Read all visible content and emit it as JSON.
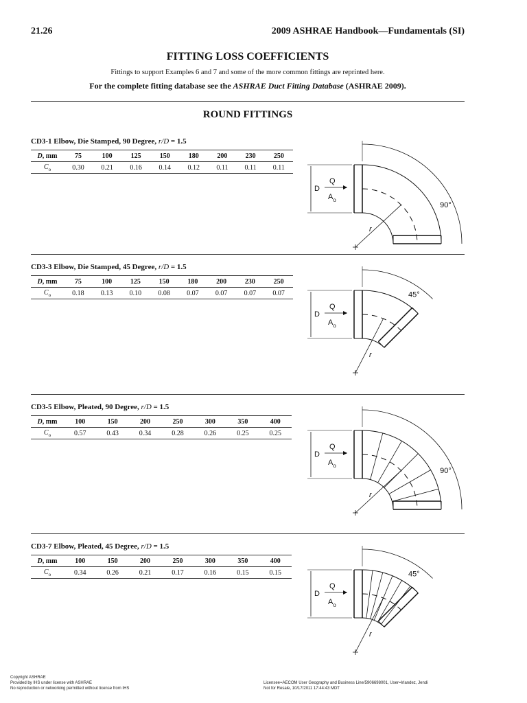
{
  "header": {
    "page_number": "21.26",
    "book": "2009 ASHRAE Handbook—Fundamentals (SI)"
  },
  "title": "FITTING LOSS COEFFICIENTS",
  "intro": "Fittings to support Examples 6 and 7 and some of the more common fittings are reprinted here.",
  "note": {
    "before": "For the complete fitting database see the",
    "italic": "ASHRAE Duct Fitting Database",
    "after": "(ASHRAE 2009)."
  },
  "section": "ROUND FITTINGS",
  "fittings": [
    {
      "title": "CD3-1 Elbow, Die Stamped, 90 Degree,",
      "ratio_var": "r/D",
      "ratio_value": "= 1.5",
      "row_var": "D",
      "row_unit": ", mm",
      "coef_var": "C",
      "coef_sub": "o",
      "diameters": [
        "75",
        "100",
        "125",
        "150",
        "180",
        "200",
        "230",
        "250"
      ],
      "coefficients": [
        "0.30",
        "0.21",
        "0.16",
        "0.14",
        "0.12",
        "0.11",
        "0.11",
        "0.11"
      ],
      "diagram": {
        "angle": "90°",
        "d": "D",
        "q": "Q",
        "a": "A",
        "a_sub": "o",
        "r": "r"
      }
    },
    {
      "title": "CD3-3 Elbow, Die Stamped, 45 Degree,",
      "ratio_var": "r/D",
      "ratio_value": "= 1.5",
      "row_var": "D",
      "row_unit": ", mm",
      "coef_var": "C",
      "coef_sub": "o",
      "diameters": [
        "75",
        "100",
        "125",
        "150",
        "180",
        "200",
        "230",
        "250"
      ],
      "coefficients": [
        "0.18",
        "0.13",
        "0.10",
        "0.08",
        "0.07",
        "0.07",
        "0.07",
        "0.07"
      ],
      "diagram": {
        "angle": "45°",
        "d": "D",
        "q": "Q",
        "a": "A",
        "a_sub": "o",
        "r": "r"
      }
    },
    {
      "title": "CD3-5 Elbow, Pleated, 90 Degree,",
      "ratio_var": "r/D",
      "ratio_value": "= 1.5",
      "row_var": "D",
      "row_unit": ", mm",
      "coef_var": "C",
      "coef_sub": "o",
      "diameters": [
        "100",
        "150",
        "200",
        "250",
        "300",
        "350",
        "400"
      ],
      "coefficients": [
        "0.57",
        "0.43",
        "0.34",
        "0.28",
        "0.26",
        "0.25",
        "0.25"
      ],
      "diagram": {
        "angle": "90°",
        "d": "D",
        "q": "Q",
        "a": "A",
        "a_sub": "o",
        "r": "r"
      }
    },
    {
      "title": "CD3-7 Elbow, Pleated, 45 Degree,",
      "ratio_var": "r/D",
      "ratio_value": "= 1.5",
      "row_var": "D",
      "row_unit": ", mm",
      "coef_var": "C",
      "coef_sub": "o",
      "diameters": [
        "100",
        "150",
        "200",
        "250",
        "300",
        "350",
        "400"
      ],
      "coefficients": [
        "0.34",
        "0.26",
        "0.21",
        "0.17",
        "0.16",
        "0.15",
        "0.15"
      ],
      "diagram": {
        "angle": "45°",
        "d": "D",
        "q": "Q",
        "a": "A",
        "a_sub": "o",
        "r": "r"
      }
    }
  ],
  "footer": {
    "left": [
      "Copyright ASHRAE",
      "Provided by IHS under license with ASHRAE",
      "No reproduction or networking permitted without license from IHS"
    ],
    "right": [
      "Licensee=AECOM User Geography and Business Line/5906698001, User=Irlandez, Jendi",
      "Not for Resale, 10/17/2011 17:44:43 MDT"
    ]
  }
}
